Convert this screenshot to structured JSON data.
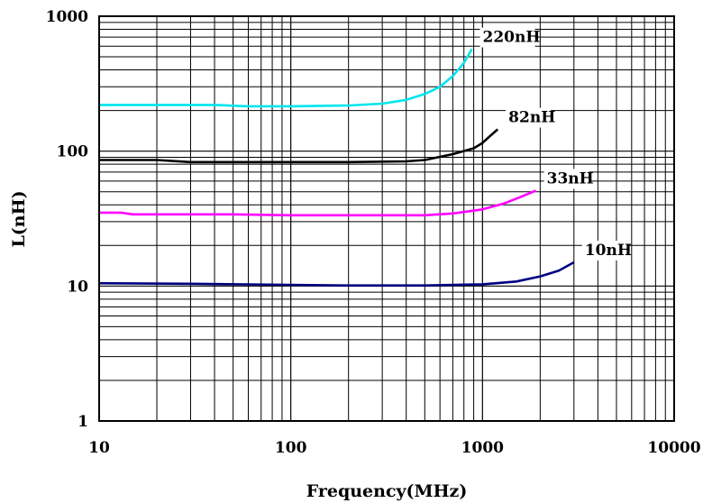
{
  "chart_data": {
    "type": "line",
    "title": "",
    "xlabel": "Frequency(MHz)",
    "ylabel": "L(nH)",
    "xscale": "log",
    "yscale": "log",
    "xlim": [
      10,
      10000
    ],
    "ylim": [
      1,
      1000
    ],
    "grid": true,
    "x_ticks": [
      "10",
      "100",
      "1000",
      "10000"
    ],
    "y_ticks": [
      "1",
      "10",
      "100",
      "1000"
    ],
    "series": [
      {
        "name": "220nH",
        "color": "#00e5ee",
        "points": [
          [
            10,
            220
          ],
          [
            20,
            220
          ],
          [
            40,
            220
          ],
          [
            60,
            215
          ],
          [
            100,
            215
          ],
          [
            200,
            218
          ],
          [
            300,
            225
          ],
          [
            400,
            240
          ],
          [
            500,
            265
          ],
          [
            600,
            300
          ],
          [
            700,
            360
          ],
          [
            800,
            450
          ],
          [
            880,
            570
          ]
        ]
      },
      {
        "name": "82nH",
        "color": "#000000",
        "points": [
          [
            10,
            86
          ],
          [
            20,
            86
          ],
          [
            30,
            83
          ],
          [
            50,
            83
          ],
          [
            100,
            83
          ],
          [
            200,
            83
          ],
          [
            400,
            84
          ],
          [
            500,
            86
          ],
          [
            700,
            95
          ],
          [
            900,
            105
          ],
          [
            1000,
            115
          ],
          [
            1100,
            130
          ],
          [
            1200,
            145
          ]
        ]
      },
      {
        "name": "33nH",
        "color": "#ff00ff",
        "points": [
          [
            10,
            35
          ],
          [
            13,
            35
          ],
          [
            15,
            34
          ],
          [
            50,
            34
          ],
          [
            100,
            33.5
          ],
          [
            300,
            33.5
          ],
          [
            500,
            33.5
          ],
          [
            700,
            34.5
          ],
          [
            1000,
            37
          ],
          [
            1300,
            41
          ],
          [
            1600,
            46
          ],
          [
            1900,
            51
          ]
        ]
      },
      {
        "name": "10nH",
        "color": "#000080",
        "points": [
          [
            10,
            10.5
          ],
          [
            30,
            10.4
          ],
          [
            100,
            10.2
          ],
          [
            200,
            10.1
          ],
          [
            500,
            10.1
          ],
          [
            1000,
            10.3
          ],
          [
            1500,
            10.8
          ],
          [
            2000,
            11.8
          ],
          [
            2500,
            13
          ],
          [
            3000,
            15
          ]
        ]
      }
    ]
  }
}
